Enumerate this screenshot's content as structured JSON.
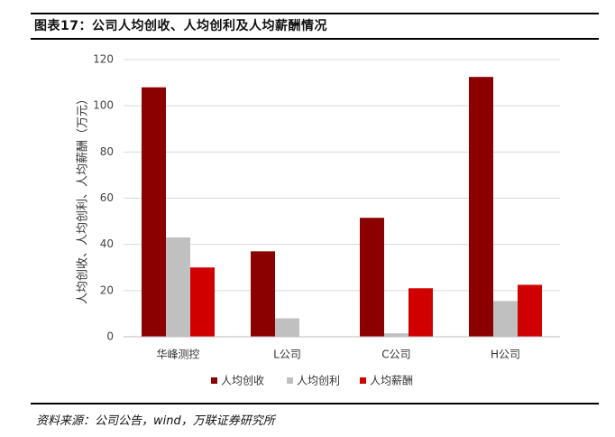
{
  "figure": {
    "title": "图表17：公司人均创收、人均创利及人均薪酬情况",
    "source": "资料来源：公司公告，wind，万联证券研究所"
  },
  "colors": {
    "revenue_per_capita": "#8b0000",
    "profit_per_capita": "#c0c0c0",
    "salary_per_capita": "#d00000",
    "gridline": "#d9d9d9"
  },
  "chart_data": {
    "type": "bar",
    "title": "",
    "xlabel": "",
    "ylabel": "人均创收、人均创利、人均薪酬（万元）",
    "categories": [
      "华峰测控",
      "L公司",
      "C公司",
      "H公司"
    ],
    "series": [
      {
        "name": "人均创收",
        "values": [
          108,
          37,
          51.5,
          112.5
        ]
      },
      {
        "name": "人均创利",
        "values": [
          43,
          8,
          1.5,
          15.5
        ]
      },
      {
        "name": "人均薪酬",
        "values": [
          30,
          0,
          21,
          22.5
        ]
      }
    ],
    "ylim": [
      0,
      120
    ],
    "yticks": [
      0,
      20,
      40,
      60,
      80,
      100,
      120
    ],
    "grid": true,
    "legend_position": "bottom"
  }
}
